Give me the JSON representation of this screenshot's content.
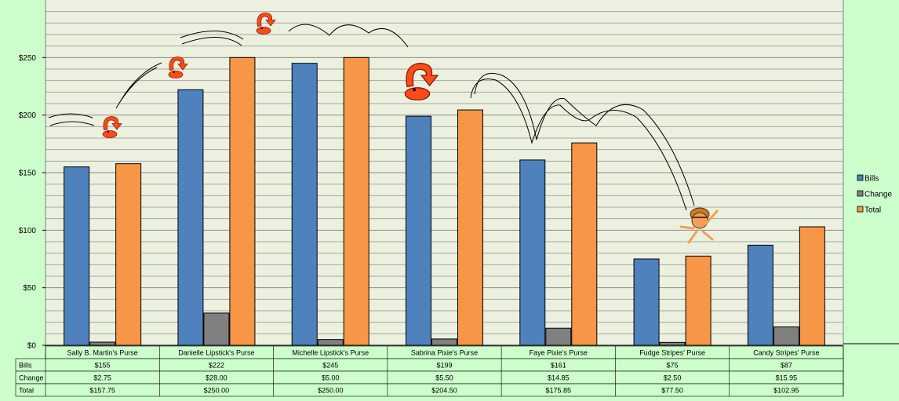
{
  "chart_data": {
    "type": "bar",
    "ylim": [
      0,
      300
    ],
    "yticks": [
      0,
      50,
      100,
      150,
      200,
      250
    ],
    "ytick_labels": [
      "$0",
      "$50",
      "$100",
      "$150",
      "$200",
      "$250"
    ],
    "grid": true,
    "legend_position": "right",
    "categories": [
      "Sally B. Martin's Purse",
      "Danielle Lipstick's Purse",
      "Michelle Lipstick's Purse",
      "Sabrina Pixie's Purse",
      "Faye Pixie's Purse",
      "Fudge Stripes' Purse",
      "Candy Stripes' Purse"
    ],
    "series": [
      {
        "name": "Bills",
        "color": "#4f81bd",
        "values": [
          155,
          222,
          245,
          199,
          161,
          75,
          87
        ],
        "labels": [
          "$155",
          "$222",
          "$245",
          "$199",
          "$161",
          "$75",
          "$87"
        ]
      },
      {
        "name": "Change",
        "color": "#808080",
        "values": [
          2.75,
          28.0,
          5.0,
          5.5,
          14.85,
          2.5,
          15.95
        ],
        "labels": [
          "$2.75",
          "$28.00",
          "$5.00",
          "$5.50",
          "$14.85",
          "$2.50",
          "$15.95"
        ]
      },
      {
        "name": "Total",
        "color": "#f79646",
        "values": [
          157.75,
          250.0,
          250.0,
          204.5,
          175.85,
          77.5,
          102.95
        ],
        "labels": [
          "$157.75",
          "$250.00",
          "$250.00",
          "$204.50",
          "$175.85",
          "$77.50",
          "$102.95"
        ]
      }
    ]
  },
  "colors": {
    "background": "#ccffcc",
    "plot_area": "#ebf1de",
    "gridline": "#a6a6a6",
    "creature_accent": "#ff4a1a"
  },
  "decorations": {
    "icons": [
      "creature-icon",
      "runner-icon"
    ]
  }
}
